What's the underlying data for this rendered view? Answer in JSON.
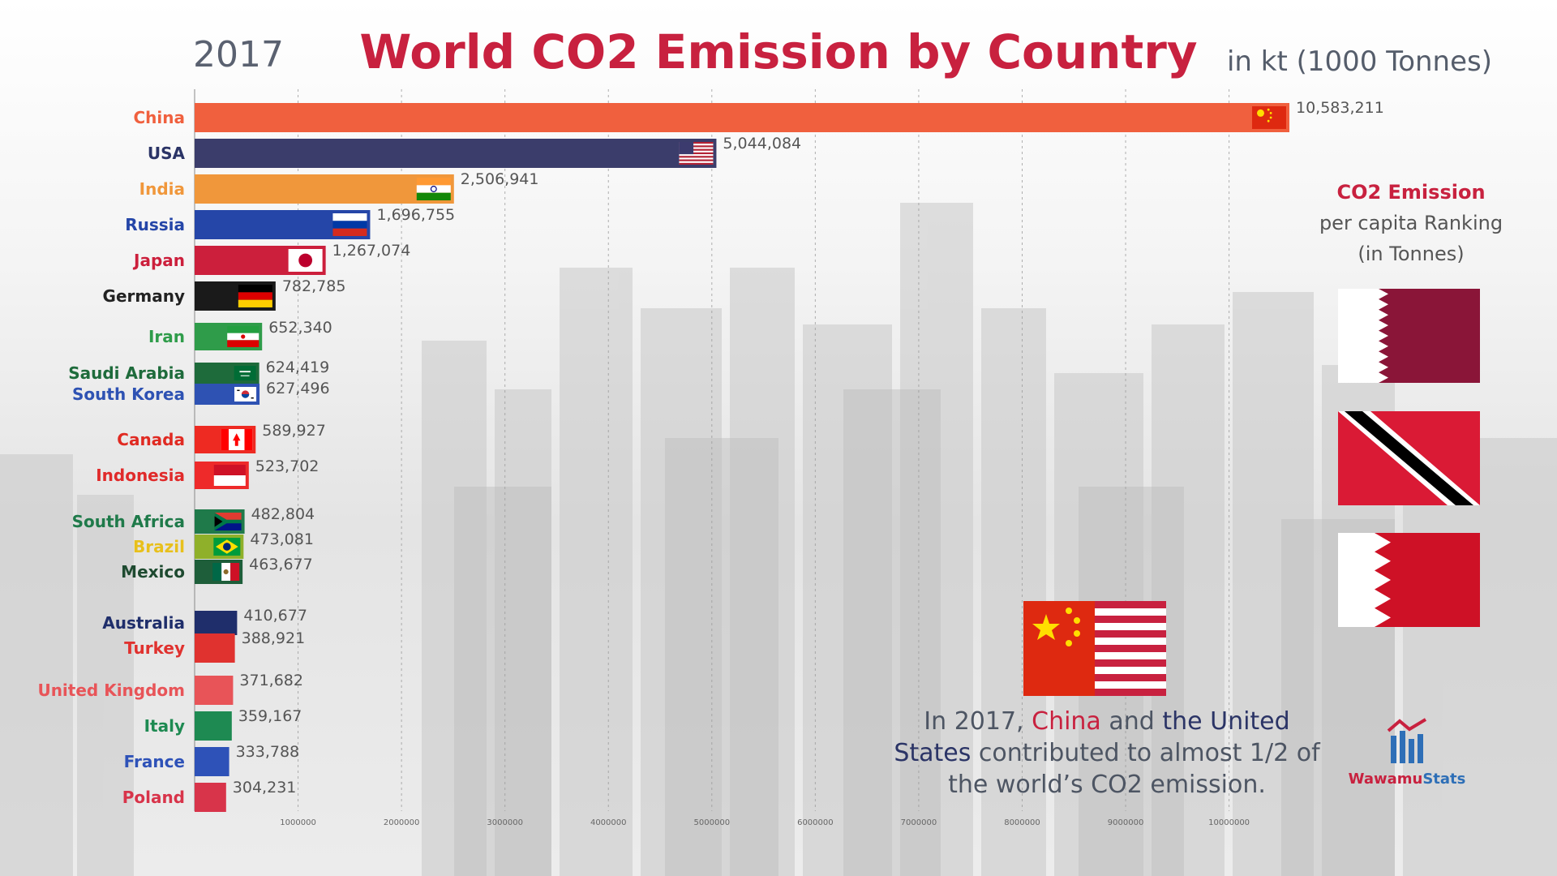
{
  "header": {
    "year": "2017",
    "unit": "in kt (1000 Tonnes)"
  },
  "per_capita": {
    "line1": "CO2 Emission",
    "line2": "per capita Ranking",
    "line3": "(in Tonnes)"
  },
  "note": {
    "p1": "In 2017, ",
    "china": "China",
    "p2": " and ",
    "us": "the United States",
    "p3": " contributed to almost 1/2 of the world’s CO2 emission."
  },
  "logo": {
    "w": "Wawamu",
    "s": "Stats"
  },
  "colors": {
    "title": "#c8213f",
    "china": "#f0603e",
    "usa": "#3b3d6b"
  },
  "chart_data": {
    "type": "bar",
    "orientation": "horizontal",
    "title": "World CO2 Emission by Country",
    "xlim": [
      0,
      10583211
    ],
    "x_ticks": [
      "1000000",
      "2000000",
      "3000000",
      "4000000",
      "5000000",
      "6000000",
      "7000000",
      "8000000",
      "9000000",
      "10000000"
    ],
    "grid": true,
    "bars": [
      {
        "country": "China",
        "value": 10583211,
        "label": "10,583,211",
        "color": "#f0603e",
        "labelColor": "#f0603e",
        "flag": "china"
      },
      {
        "country": "USA",
        "value": 5044084,
        "label": "5,044,084",
        "color": "#3b3d6b",
        "labelColor": "#2b3466",
        "flag": "usa"
      },
      {
        "country": "India",
        "value": 2506941,
        "label": "2,506,941",
        "color": "#f0973b",
        "labelColor": "#f0973b",
        "flag": "india"
      },
      {
        "country": "Russia",
        "value": 1696755,
        "label": "1,696,755",
        "color": "#2546a8",
        "labelColor": "#2546a8",
        "flag": "russia"
      },
      {
        "country": "Japan",
        "value": 1267074,
        "label": "1,267,074",
        "color": "#cc1f3c",
        "labelColor": "#cc1f3c",
        "flag": "japan"
      },
      {
        "country": "Germany",
        "value": 782785,
        "label": "782,785",
        "color": "#1a1a1a",
        "labelColor": "#222222",
        "flag": "germany"
      },
      {
        "country": "Iran",
        "value": 652340,
        "label": "652,340",
        "color": "#2f9c4a",
        "labelColor": "#2f9c4a",
        "flag": "iran"
      },
      {
        "country": "Saudi Arabia",
        "value": 624419,
        "label": "624,419",
        "color": "#1e6b3b",
        "labelColor": "#1e6b3b",
        "flag": "saudi"
      },
      {
        "country": "South Korea",
        "value": 627496,
        "label": "627,496",
        "color": "#2e52b3",
        "labelColor": "#2e52b3",
        "flag": "korea"
      },
      {
        "country": "Canada",
        "value": 589927,
        "label": "589,927",
        "color": "#ee2a22",
        "labelColor": "#e02a22",
        "flag": "canada"
      },
      {
        "country": "Indonesia",
        "value": 523702,
        "label": "523,702",
        "color": "#ee2a2a",
        "labelColor": "#e02a2a",
        "flag": "indonesia"
      },
      {
        "country": "South Africa",
        "value": 482804,
        "label": "482,804",
        "color": "#1f7a4a",
        "labelColor": "#1f7a4a",
        "flag": "southafrica"
      },
      {
        "country": "Brazil",
        "value": 473081,
        "label": "473,081",
        "color": "#8fb02a",
        "labelColor": "#e8c01c",
        "flag": "brazil"
      },
      {
        "country": "Mexico",
        "value": 463677,
        "label": "463,677",
        "color": "#1e5e3a",
        "labelColor": "#1e4a30",
        "flag": "mexico"
      },
      {
        "country": "Australia",
        "value": 410677,
        "label": "410,677",
        "color": "#1f2e6b",
        "labelColor": "#1f2e6b",
        "flag": "none"
      },
      {
        "country": "Turkey",
        "value": 388921,
        "label": "388,921",
        "color": "#e0322f",
        "labelColor": "#e0322f",
        "flag": "none"
      },
      {
        "country": "United Kingdom",
        "value": 371682,
        "label": "371,682",
        "color": "#e85458",
        "labelColor": "#e85458",
        "flag": "none"
      },
      {
        "country": "Italy",
        "value": 359167,
        "label": "359,167",
        "color": "#1e8a52",
        "labelColor": "#1e8a52",
        "flag": "none"
      },
      {
        "country": "France",
        "value": 333788,
        "label": "333,788",
        "color": "#2e52b8",
        "labelColor": "#2e52b8",
        "flag": "none"
      },
      {
        "country": "Poland",
        "value": 304231,
        "label": "304,231",
        "color": "#d8344a",
        "labelColor": "#d8344a",
        "flag": "none"
      }
    ]
  }
}
